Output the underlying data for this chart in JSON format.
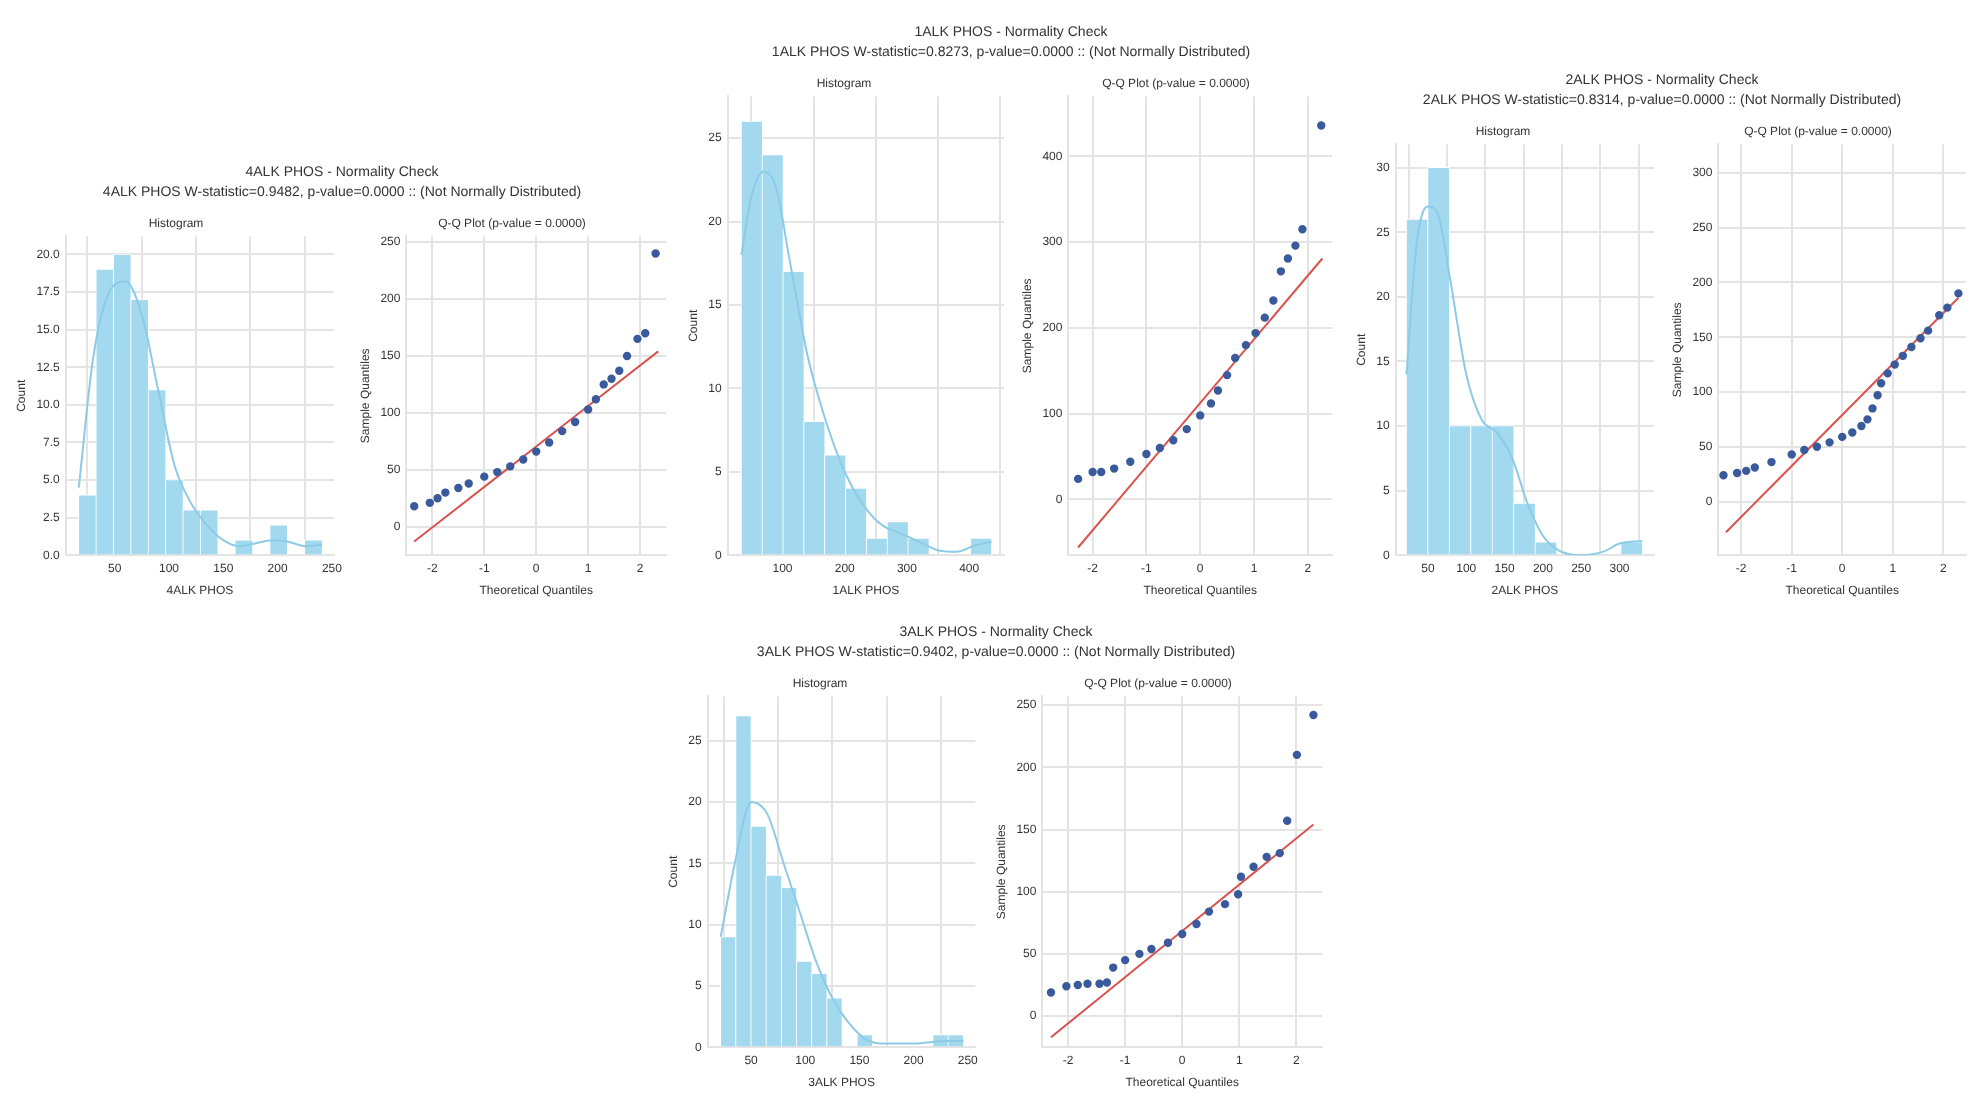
{
  "chart_data": [
    {
      "type": "histogram",
      "title": "Histogram",
      "xlabel": "4ALK PHOS",
      "ylabel": "Count",
      "annotations": [
        "4ALK PHOS - Normality Check",
        "4ALK PHOS  W-statistic=0.9482, p-value=0.0000 :: (Not Normally Distributed)"
      ],
      "bins": [
        17,
        33,
        49,
        65,
        81,
        97,
        113,
        129,
        145,
        161,
        177,
        193,
        209,
        225,
        241
      ],
      "values": [
        4,
        19,
        20,
        17,
        11,
        5,
        3,
        3,
        0,
        1,
        0,
        2,
        0,
        1
      ],
      "color": "#a3d9ef",
      "xlim": [
        5,
        252
      ],
      "ylim": [
        0,
        21.2
      ],
      "xticks": [
        50,
        100,
        150,
        200,
        250
      ],
      "yticks": [
        {
          "value": 0,
          "label": "0.0"
        },
        {
          "value": 2.5,
          "label": "2.5"
        },
        {
          "value": 5,
          "label": "5.0"
        },
        {
          "value": 7.5,
          "label": "7.5"
        },
        {
          "value": 10,
          "label": "10.0"
        },
        {
          "value": 12.5,
          "label": "12.5"
        },
        {
          "value": 15,
          "label": "15.0"
        },
        {
          "value": 17.5,
          "label": "17.5"
        },
        {
          "value": 20,
          "label": "20.0"
        }
      ],
      "grid": true,
      "series": [
        {
          "type": "line",
          "color": "#8ccbe6",
          "x": [
            17,
            30,
            45,
            60,
            75,
            90,
            105,
            120,
            135,
            150,
            165,
            180,
            195,
            210,
            225,
            241
          ],
          "values": [
            4.5,
            13,
            17.5,
            18.2,
            16,
            11,
            6,
            3.5,
            2,
            1,
            0.6,
            0.8,
            1,
            0.9,
            0.6,
            0.7
          ]
        }
      ]
    },
    {
      "type": "scatter",
      "title": "Q-Q Plot (p-value = 0.0000)",
      "xlabel": "Theoretical Quantiles",
      "ylabel": "Sample Quantiles",
      "xlim": [
        -2.5,
        2.5
      ],
      "ylim": [
        -25,
        255
      ],
      "xticks": [
        -2,
        -1,
        0,
        1,
        2
      ],
      "yticks": [
        0,
        50,
        100,
        150,
        200,
        250
      ],
      "grid": true,
      "series": [
        {
          "type": "scatter",
          "marker": "circle",
          "color": "#3a5a9c",
          "x": [
            -2.35,
            -2.05,
            -1.9,
            -1.75,
            -1.5,
            -1.3,
            -1,
            -0.75,
            -0.5,
            -0.25,
            0,
            0.25,
            0.5,
            0.75,
            1,
            1.15,
            1.3,
            1.45,
            1.6,
            1.75,
            1.95,
            2.1,
            2.3
          ],
          "values": [
            18,
            21,
            25,
            30,
            34,
            38,
            44,
            48,
            53,
            59,
            66,
            74,
            84,
            92,
            103,
            112,
            125,
            130,
            137,
            150,
            165,
            170,
            240
          ]
        },
        {
          "type": "line",
          "color": "#d9534f",
          "x": [
            -2.35,
            2.35
          ],
          "values": [
            -13,
            154
          ]
        }
      ]
    },
    {
      "type": "histogram",
      "title": "Histogram",
      "xlabel": "1ALK PHOS",
      "ylabel": "Count",
      "annotations": [
        "1ALK PHOS - Normality Check",
        "1ALK PHOS  W-statistic=0.8273, p-value=0.0000 :: (Not Normally Distributed)"
      ],
      "bins": [
        34,
        67.5,
        101,
        134.5,
        168,
        201.5,
        235,
        268.5,
        302,
        335.5,
        369,
        402.5,
        436
      ],
      "values": [
        26,
        24,
        17,
        8,
        6,
        4,
        1,
        2,
        1,
        0,
        0,
        1
      ],
      "color": "#a3d9ef",
      "xlim": [
        12,
        456
      ],
      "ylim": [
        0,
        27.5
      ],
      "xticks": [
        100,
        200,
        300,
        400
      ],
      "yticks": [
        0,
        5,
        10,
        15,
        20,
        25
      ],
      "grid": true,
      "series": [
        {
          "type": "line",
          "color": "#8ccbe6",
          "x": [
            34,
            50,
            70,
            90,
            110,
            140,
            170,
            200,
            230,
            260,
            290,
            320,
            350,
            380,
            410,
            436
          ],
          "values": [
            18,
            21.5,
            23,
            22,
            18,
            12,
            8,
            5,
            3,
            1.8,
            1.3,
            0.8,
            0.3,
            0.2,
            0.6,
            0.8
          ]
        }
      ]
    },
    {
      "type": "scatter",
      "title": "Q-Q Plot (p-value = 0.0000)",
      "xlabel": "Theoretical Quantiles",
      "ylabel": "Sample Quantiles",
      "xlim": [
        -2.45,
        2.45
      ],
      "ylim": [
        -65,
        470
      ],
      "xticks": [
        -2,
        -1,
        0,
        1,
        2
      ],
      "yticks": [
        0,
        100,
        200,
        300,
        400
      ],
      "grid": true,
      "series": [
        {
          "type": "scatter",
          "marker": "circle",
          "color": "#3a5a9c",
          "x": [
            -2.27,
            -2,
            -1.84,
            -1.6,
            -1.3,
            -1,
            -0.75,
            -0.5,
            -0.25,
            0,
            0.2,
            0.33,
            0.5,
            0.65,
            0.85,
            1.03,
            1.2,
            1.36,
            1.5,
            1.63,
            1.77,
            1.9,
            2.25
          ],
          "values": [
            24,
            32,
            32,
            36,
            44,
            53,
            60,
            69,
            82,
            98,
            112,
            127,
            145,
            165,
            180,
            194,
            212,
            232,
            266,
            281,
            296,
            315,
            436
          ]
        },
        {
          "type": "line",
          "color": "#d9534f",
          "x": [
            -2.27,
            2.27
          ],
          "values": [
            -56,
            281
          ]
        }
      ]
    },
    {
      "type": "histogram",
      "title": "Histogram",
      "xlabel": "2ALK PHOS",
      "ylabel": "Count",
      "annotations": [
        "2ALK PHOS - Normality Check",
        "2ALK PHOS  W-statistic=0.8314, p-value=0.0000 :: (Not Normally Distributed)"
      ],
      "bins": [
        22,
        50,
        78,
        106,
        134,
        162,
        190,
        218,
        246,
        274,
        302,
        330
      ],
      "values": [
        26,
        30,
        10,
        10,
        10,
        4,
        1,
        0,
        0,
        0,
        1
      ],
      "color": "#a3d9ef",
      "xlim": [
        8,
        345
      ],
      "ylim": [
        0,
        31.8
      ],
      "xticks": [
        50,
        100,
        150,
        200,
        250,
        300
      ],
      "yticks": [
        0,
        5,
        10,
        15,
        20,
        25,
        30
      ],
      "grid": true,
      "series": [
        {
          "type": "line",
          "color": "#8ccbe6",
          "x": [
            22,
            35,
            50,
            65,
            80,
            100,
            120,
            140,
            160,
            180,
            200,
            220,
            250,
            280,
            300,
            330
          ],
          "values": [
            14,
            24,
            27,
            26,
            21,
            14,
            10.5,
            9.5,
            7.5,
            4,
            1.5,
            0.4,
            0,
            0.3,
            0.9,
            1.1
          ]
        }
      ]
    },
    {
      "type": "scatter",
      "title": "Q-Q Plot (p-value = 0.0000)",
      "xlabel": "Theoretical Quantiles",
      "ylabel": "Sample Quantiles",
      "xlim": [
        -2.45,
        2.45
      ],
      "ylim": [
        -49,
        326
      ],
      "xticks": [
        -2,
        -1,
        0,
        1,
        2
      ],
      "yticks": [
        0,
        50,
        100,
        150,
        200,
        250,
        300
      ],
      "grid": true,
      "series": [
        {
          "type": "scatter",
          "marker": "circle",
          "color": "#3a5a9c",
          "x": [
            -2.35,
            -2.08,
            -1.9,
            -1.73,
            -1.4,
            -1,
            -0.75,
            -0.5,
            -0.25,
            0,
            0.2,
            0.38,
            0.5,
            0.6,
            0.7,
            0.77,
            0.9,
            1.04,
            1.2,
            1.37,
            1.55,
            1.7,
            1.92,
            2.08,
            2.3
          ],
          "values": [
            24,
            26,
            28,
            31,
            36,
            43,
            47,
            50,
            54,
            59,
            63,
            69,
            75,
            85,
            97,
            108,
            117,
            125,
            133,
            141,
            149,
            156,
            170,
            177,
            190
          ]
        },
        {
          "type": "line",
          "color": "#d9534f",
          "x": [
            -2.3,
            2.3
          ],
          "values": [
            -28,
            186
          ]
        }
      ]
    },
    {
      "type": "histogram",
      "title": "Histogram",
      "xlabel": "3ALK PHOS",
      "ylabel": "Count",
      "annotations": [
        "3ALK PHOS - Normality Check",
        "3ALK PHOS  W-statistic=0.9402, p-value=0.0000 :: (Not Normally Distributed)"
      ],
      "bins": [
        22,
        36,
        50,
        64,
        78,
        92,
        106,
        120,
        134,
        148,
        162,
        176,
        190,
        204,
        218,
        232,
        246
      ],
      "values": [
        9,
        27,
        18,
        14,
        13,
        7,
        6,
        4,
        0,
        1,
        0,
        0,
        0,
        0,
        1,
        1
      ],
      "color": "#a3d9ef",
      "xlim": [
        10,
        257
      ],
      "ylim": [
        0,
        28.6
      ],
      "xticks": [
        50,
        100,
        150,
        200,
        250
      ],
      "yticks": [
        0,
        5,
        10,
        15,
        20,
        25
      ],
      "grid": true,
      "series": [
        {
          "type": "line",
          "color": "#8ccbe6",
          "x": [
            22,
            35,
            50,
            65,
            80,
            95,
            110,
            125,
            140,
            155,
            170,
            200,
            230,
            246
          ],
          "values": [
            9,
            15,
            20,
            19,
            15,
            11,
            7,
            4,
            2,
            0.7,
            0.3,
            0.3,
            0.5,
            0.5
          ]
        }
      ]
    },
    {
      "type": "scatter",
      "title": "Q-Q Plot (p-value = 0.0000)",
      "xlabel": "Theoretical Quantiles",
      "ylabel": "Sample Quantiles",
      "xlim": [
        -2.45,
        2.45
      ],
      "ylim": [
        -25,
        257
      ],
      "xticks": [
        -2,
        -1,
        0,
        1,
        2
      ],
      "yticks": [
        0,
        50,
        100,
        150,
        200,
        250
      ],
      "grid": true,
      "series": [
        {
          "type": "scatter",
          "marker": "circle",
          "color": "#3a5a9c",
          "x": [
            -2.3,
            -2.03,
            -1.83,
            -1.66,
            -1.45,
            -1.32,
            -1.21,
            -1,
            -0.75,
            -0.54,
            -0.25,
            0,
            0.25,
            0.47,
            0.75,
            0.98,
            1.03,
            1.25,
            1.48,
            1.71,
            1.84,
            2.01,
            2.3
          ],
          "values": [
            19,
            24,
            25,
            26,
            26,
            27,
            39,
            45,
            50,
            54,
            59,
            66,
            74,
            84,
            90,
            98,
            112,
            120,
            128,
            131,
            157,
            210,
            242
          ]
        },
        {
          "type": "line",
          "color": "#d9534f",
          "x": [
            -2.3,
            2.3
          ],
          "values": [
            -17,
            154
          ]
        }
      ]
    }
  ]
}
